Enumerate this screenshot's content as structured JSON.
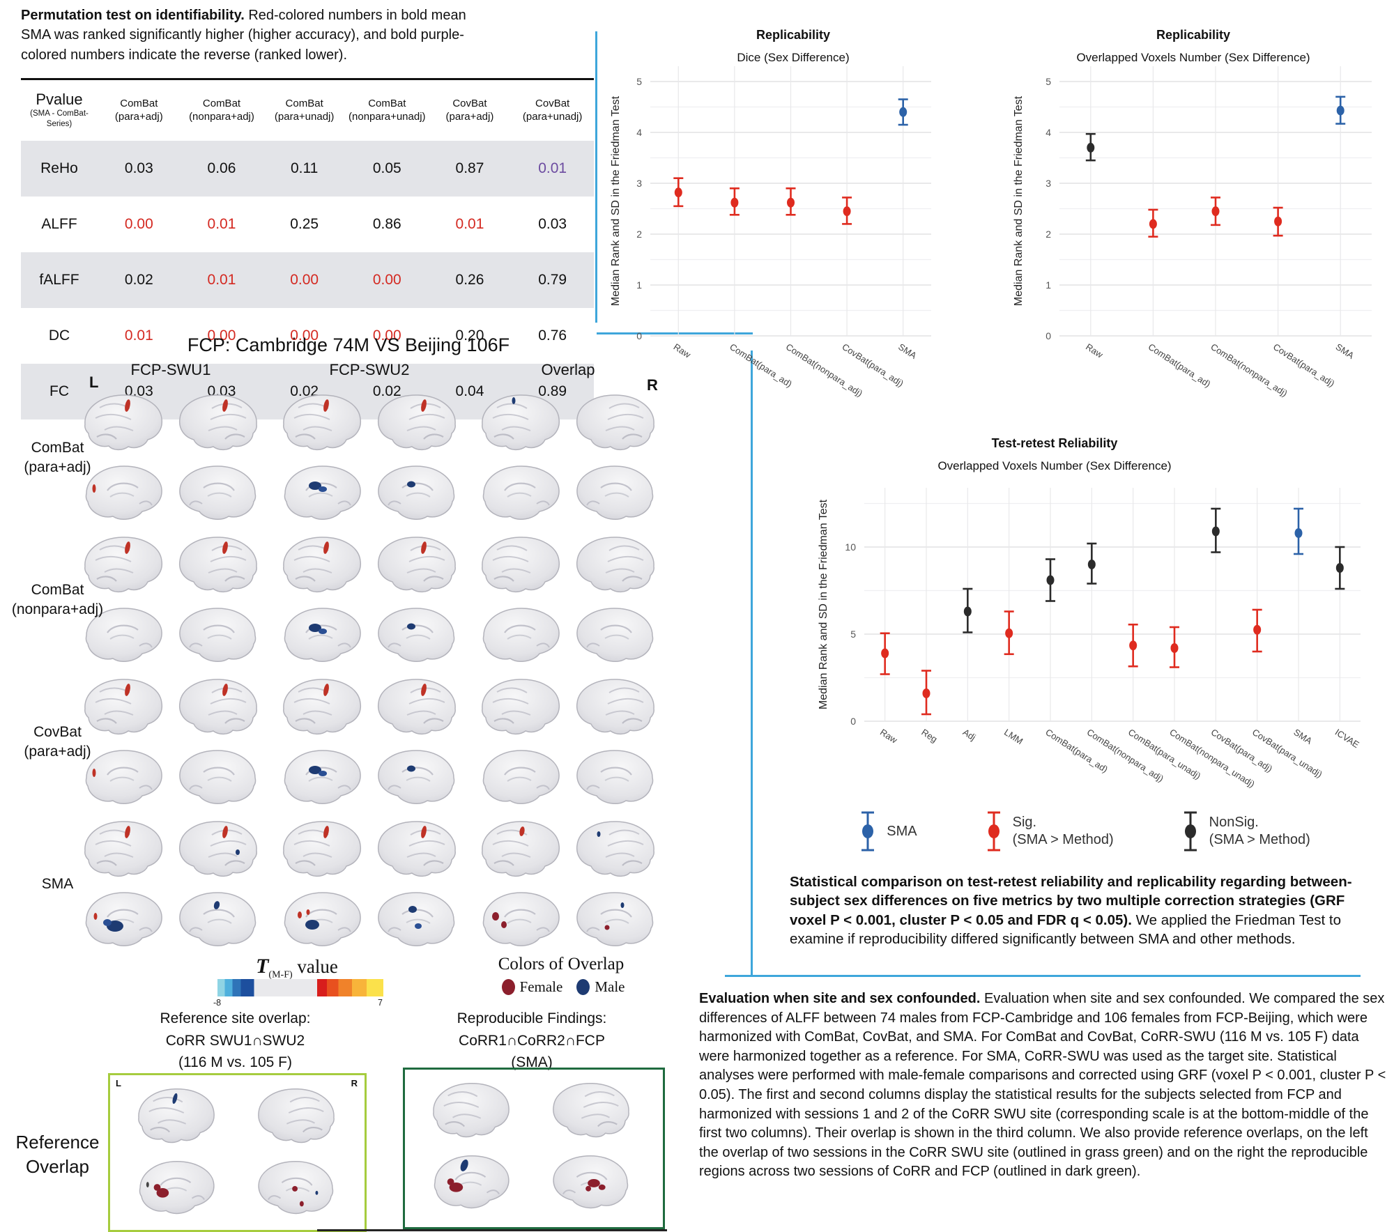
{
  "colors": {
    "sma": "#2C62A8",
    "sig": "#DF2B1F",
    "nonsig": "#2B2B2B",
    "divider": "#3EA6DB",
    "purple": "#6C4BA0",
    "red_text": "#D42921",
    "row_shade": "#E3E4E8",
    "female": "#8C1F2C",
    "male": "#1E3B72",
    "grass_green": "#A6CC3E",
    "dark_green": "#1F6B3F"
  },
  "identifiability": {
    "caption": {
      "lead": "Permutation test on identifiability.",
      "rest": " Red-colored numbers in bold mean SMA was ranked significantly higher (higher accuracy), and bold purple-colored numbers indicate the reverse (ranked lower)."
    },
    "table": {
      "corner": {
        "main": "Pvalue",
        "sub1": "(SMA - ComBat-",
        "sub2": "Series)"
      },
      "columns": [
        {
          "line1": "ComBat",
          "line2": "(para+adj)"
        },
        {
          "line1": "ComBat",
          "line2": "(nonpara+adj)"
        },
        {
          "line1": "ComBat",
          "line2": "(para+unadj)"
        },
        {
          "line1": "ComBat",
          "line2": "(nonpara+unadj)"
        },
        {
          "line1": "CovBat",
          "line2": "(para+adj)"
        },
        {
          "line1": "CovBat",
          "line2": "(para+unadj)"
        }
      ],
      "rows": [
        {
          "metric": "ReHo",
          "shade": true,
          "cells": [
            {
              "v": "0.03",
              "s": "plain"
            },
            {
              "v": "0.06",
              "s": "plain"
            },
            {
              "v": "0.11",
              "s": "plain"
            },
            {
              "v": "0.05",
              "s": "plain"
            },
            {
              "v": "0.87",
              "s": "plain"
            },
            {
              "v": "0.01",
              "s": "purple"
            }
          ]
        },
        {
          "metric": "ALFF",
          "shade": false,
          "cells": [
            {
              "v": "0.00",
              "s": "red"
            },
            {
              "v": "0.01",
              "s": "red"
            },
            {
              "v": "0.25",
              "s": "plain"
            },
            {
              "v": "0.86",
              "s": "plain"
            },
            {
              "v": "0.01",
              "s": "red"
            },
            {
              "v": "0.03",
              "s": "plain"
            }
          ]
        },
        {
          "metric": "fALFF",
          "shade": true,
          "cells": [
            {
              "v": "0.02",
              "s": "plain"
            },
            {
              "v": "0.01",
              "s": "red"
            },
            {
              "v": "0.00",
              "s": "red"
            },
            {
              "v": "0.00",
              "s": "red"
            },
            {
              "v": "0.26",
              "s": "plain"
            },
            {
              "v": "0.79",
              "s": "plain"
            }
          ]
        },
        {
          "metric": "DC",
          "shade": false,
          "cells": [
            {
              "v": "0.01",
              "s": "red"
            },
            {
              "v": "0.00",
              "s": "red"
            },
            {
              "v": "0.00",
              "s": "red"
            },
            {
              "v": "0.00",
              "s": "red"
            },
            {
              "v": "0.20",
              "s": "plain"
            },
            {
              "v": "0.76",
              "s": "plain"
            }
          ]
        },
        {
          "metric": "FC",
          "shade": true,
          "cells": [
            {
              "v": "0.03",
              "s": "plain"
            },
            {
              "v": "0.03",
              "s": "plain"
            },
            {
              "v": "0.02",
              "s": "plain"
            },
            {
              "v": "0.02",
              "s": "plain"
            },
            {
              "v": "0.04",
              "s": "plain"
            },
            {
              "v": "0.89",
              "s": "plain"
            }
          ]
        }
      ]
    }
  },
  "chart_data": [
    {
      "id": "dice",
      "type": "errorbar",
      "title": "Replicability",
      "subtitle": "Dice (Sex Difference)",
      "ylabel": "Median Rank and SD in the Friedman Test",
      "ylim": [
        0,
        5.3
      ],
      "yticks": [
        0,
        1,
        2,
        3,
        4,
        5
      ],
      "grid": true,
      "legend_position": "none",
      "categories": [
        "Raw",
        "ComBat(para_ad)",
        "ComBat(nonpara_adj)",
        "CovBat(para_adj)",
        "SMA"
      ],
      "points": [
        {
          "value": 2.82,
          "lo": 2.55,
          "hi": 3.1,
          "group": "sig"
        },
        {
          "value": 2.62,
          "lo": 2.38,
          "hi": 2.9,
          "group": "sig"
        },
        {
          "value": 2.62,
          "lo": 2.38,
          "hi": 2.9,
          "group": "sig"
        },
        {
          "value": 2.45,
          "lo": 2.2,
          "hi": 2.72,
          "group": "sig"
        },
        {
          "value": 4.4,
          "lo": 4.15,
          "hi": 4.65,
          "group": "sma"
        }
      ]
    },
    {
      "id": "voxels",
      "type": "errorbar",
      "title": "Replicability",
      "subtitle": "Overlapped Voxels Number (Sex Difference)",
      "ylabel": "Median Rank and SD in the Friedman Test",
      "ylim": [
        0,
        5.3
      ],
      "yticks": [
        0,
        1,
        2,
        3,
        4,
        5
      ],
      "grid": true,
      "legend_position": "none",
      "categories": [
        "Raw",
        "ComBat(para_ad)",
        "ComBat(nonpara_adj)",
        "CovBat(para_adj)",
        "SMA"
      ],
      "points": [
        {
          "value": 3.7,
          "lo": 3.45,
          "hi": 3.97,
          "group": "nonsig"
        },
        {
          "value": 2.2,
          "lo": 1.95,
          "hi": 2.48,
          "group": "sig"
        },
        {
          "value": 2.45,
          "lo": 2.18,
          "hi": 2.72,
          "group": "sig"
        },
        {
          "value": 2.25,
          "lo": 1.97,
          "hi": 2.52,
          "group": "sig"
        },
        {
          "value": 4.43,
          "lo": 4.17,
          "hi": 4.7,
          "group": "sma"
        }
      ]
    },
    {
      "id": "retest",
      "type": "errorbar",
      "title": "Test-retest Reliability",
      "subtitle": "Overlapped Voxels Number (Sex Difference)",
      "ylabel": "Median Rank and SD in the Friedman Test",
      "ylim": [
        0,
        13.4
      ],
      "yticks": [
        0,
        5,
        10
      ],
      "grid": true,
      "legend_position": "bottom",
      "categories": [
        "Raw",
        "Reg",
        "Adj",
        "LMM",
        "ComBat(para_ad)",
        "ComBat(nonpara_adj)",
        "ComBat(para_unadj)",
        "ComBat(nonpara_unadj)",
        "CovBat(para_adj)",
        "CovBat(para_unadj)",
        "SMA",
        "ICVAE"
      ],
      "points": [
        {
          "value": 3.9,
          "lo": 2.7,
          "hi": 5.05,
          "group": "sig"
        },
        {
          "value": 1.6,
          "lo": 0.4,
          "hi": 2.9,
          "group": "sig"
        },
        {
          "value": 6.3,
          "lo": 5.1,
          "hi": 7.6,
          "group": "nonsig"
        },
        {
          "value": 5.05,
          "lo": 3.85,
          "hi": 6.3,
          "group": "sig"
        },
        {
          "value": 8.1,
          "lo": 6.9,
          "hi": 9.3,
          "group": "nonsig"
        },
        {
          "value": 9.0,
          "lo": 7.9,
          "hi": 10.2,
          "group": "nonsig"
        },
        {
          "value": 4.35,
          "lo": 3.15,
          "hi": 5.55,
          "group": "sig"
        },
        {
          "value": 4.2,
          "lo": 3.1,
          "hi": 5.4,
          "group": "sig"
        },
        {
          "value": 10.9,
          "lo": 9.7,
          "hi": 12.2,
          "group": "nonsig"
        },
        {
          "value": 5.25,
          "lo": 4.0,
          "hi": 6.4,
          "group": "sig"
        },
        {
          "value": 10.8,
          "lo": 9.6,
          "hi": 12.2,
          "group": "sma"
        },
        {
          "value": 8.8,
          "lo": 7.6,
          "hi": 10.0,
          "group": "nonsig"
        }
      ]
    }
  ],
  "legend": {
    "items": [
      {
        "label1": "SMA",
        "label2": "",
        "group": "sma"
      },
      {
        "label1": "Sig.",
        "label2": "(SMA > Method)",
        "group": "sig"
      },
      {
        "label1": "NonSig.",
        "label2": "(SMA > Method)",
        "group": "nonsig"
      }
    ]
  },
  "captions": {
    "retest_lead": "Statistical comparison on test-retest reliability and replicability regarding between-subject sex differences on five metrics by two multiple correction strategies (GRF voxel P < 0.001, cluster P < 0.05 and FDR q < 0.05).",
    "retest_rest": " We applied the Friedman Test to examine if reproducibility differed significantly between SMA and other methods.",
    "eval_lead": "Evaluation when site and sex confounded.",
    "eval_rest": " Evaluation when site and sex confounded. We compared the sex differences of ALFF between 74 males from FCP-Cambridge and 106 females from FCP-Beijing, which were harmonized with ComBat, CovBat, and SMA. For ComBat and CovBat, CoRR-SWU (116 M vs. 105 F) data were harmonized together as a reference. For SMA, CoRR-SWU was used as the target site. Statistical analyses were performed with male-female comparisons and corrected using GRF (voxel P < 0.001, cluster P < 0.05). The first and second columns display the statistical results for the subjects selected from FCP and harmonized with sessions 1 and 2 of the CoRR SWU site (corresponding scale is at the bottom-middle of the first two columns). Their overlap is shown in the third column. We also provide reference overlaps, on the left the overlap of two sessions in the CoRR SWU site (outlined in grass green) and on the right the reproducible regions across two sessions of CoRR and FCP (outlined in dark green)."
  },
  "brain_panel": {
    "title": "FCP:  Cambridge 74M VS Beijing 106F",
    "marker_left": "L",
    "marker_right": "R",
    "col_groups": [
      "FCP-SWU1",
      "FCP-SWU2",
      "Overlap"
    ],
    "rows": [
      [
        "ComBat",
        "(para+adj)"
      ],
      [
        "ComBat",
        "(nonpara+adj)"
      ],
      [
        "CovBat",
        "(para+adj)"
      ],
      [
        "SMA"
      ]
    ],
    "colorbar": {
      "t": "T",
      "sub": "(M-F)",
      "rest": " value",
      "min": "-8",
      "max": "7"
    },
    "overlap_colors": {
      "title": "Colors of Overlap",
      "items": [
        {
          "label": "Female",
          "color": "#8C1F2C"
        },
        {
          "label": "Male",
          "color": "#1E3B72"
        }
      ]
    },
    "reference": {
      "label": [
        "Reference",
        "Overlap"
      ],
      "left": {
        "title": [
          "Reference site overlap:",
          "CoRR SWU1∩SWU2",
          "(116 M vs. 105 F)"
        ],
        "L": "L",
        "R": "R"
      },
      "right": {
        "title": [
          "Reproducible Findings:",
          "CoRR1∩CoRR2∩FCP",
          "(SMA)"
        ]
      }
    }
  }
}
